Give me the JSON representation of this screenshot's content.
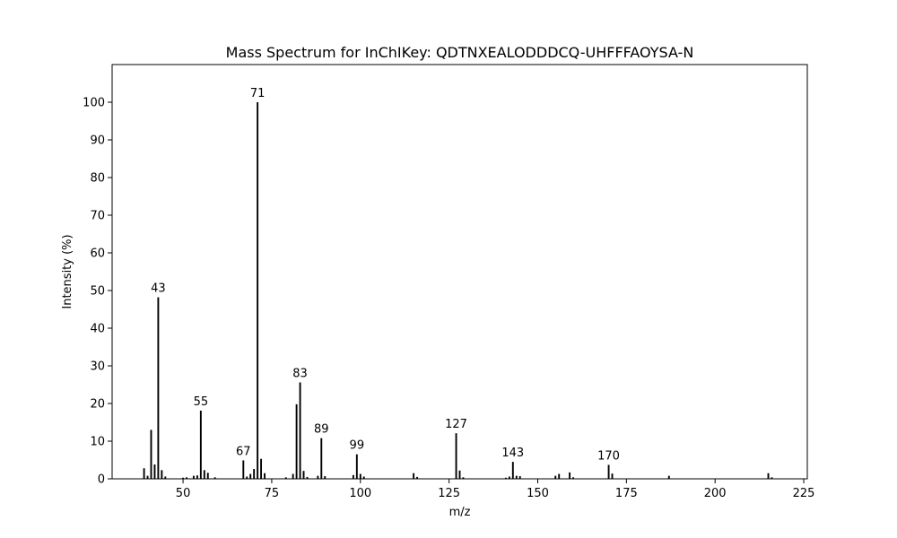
{
  "chart_data": {
    "type": "bar",
    "title": "Mass Spectrum for InChIKey: QDTNXEALODDDCQ-UHFFFAOYSA-N",
    "xlabel": "m/z",
    "ylabel": "Intensity (%)",
    "xlim": [
      30,
      226
    ],
    "ylim": [
      0,
      110
    ],
    "xticks": [
      50,
      75,
      100,
      125,
      150,
      175,
      200,
      225
    ],
    "yticks": [
      0,
      10,
      20,
      30,
      40,
      50,
      60,
      70,
      80,
      90,
      100
    ],
    "grid": false,
    "bar_color": "#000000",
    "peaks": [
      {
        "x": 39,
        "y": 2.8
      },
      {
        "x": 40,
        "y": 0.8
      },
      {
        "x": 41,
        "y": 13.0
      },
      {
        "x": 42,
        "y": 3.8
      },
      {
        "x": 43,
        "y": 48.2,
        "label": "43"
      },
      {
        "x": 44,
        "y": 2.3
      },
      {
        "x": 45,
        "y": 0.6
      },
      {
        "x": 50,
        "y": 0.3
      },
      {
        "x": 51,
        "y": 0.4
      },
      {
        "x": 53,
        "y": 0.8
      },
      {
        "x": 54,
        "y": 0.9
      },
      {
        "x": 55,
        "y": 18.1,
        "label": "55"
      },
      {
        "x": 56,
        "y": 2.3
      },
      {
        "x": 57,
        "y": 1.6
      },
      {
        "x": 59,
        "y": 0.4
      },
      {
        "x": 67,
        "y": 4.9,
        "label": "67"
      },
      {
        "x": 68,
        "y": 0.6
      },
      {
        "x": 69,
        "y": 1.3
      },
      {
        "x": 70,
        "y": 2.6
      },
      {
        "x": 71,
        "y": 100.0,
        "label": "71"
      },
      {
        "x": 72,
        "y": 5.3
      },
      {
        "x": 73,
        "y": 1.5
      },
      {
        "x": 79,
        "y": 0.4
      },
      {
        "x": 81,
        "y": 1.3
      },
      {
        "x": 82,
        "y": 19.8
      },
      {
        "x": 83,
        "y": 25.6,
        "label": "83"
      },
      {
        "x": 84,
        "y": 2.1
      },
      {
        "x": 85,
        "y": 0.5
      },
      {
        "x": 88,
        "y": 0.8
      },
      {
        "x": 89,
        "y": 10.8,
        "label": "89"
      },
      {
        "x": 90,
        "y": 0.7
      },
      {
        "x": 98,
        "y": 1.0
      },
      {
        "x": 99,
        "y": 6.5,
        "label": "99"
      },
      {
        "x": 100,
        "y": 1.3
      },
      {
        "x": 101,
        "y": 0.6
      },
      {
        "x": 115,
        "y": 1.5
      },
      {
        "x": 116,
        "y": 0.5
      },
      {
        "x": 127,
        "y": 12.1,
        "label": "127"
      },
      {
        "x": 128,
        "y": 2.2
      },
      {
        "x": 129,
        "y": 0.4
      },
      {
        "x": 141,
        "y": 0.3
      },
      {
        "x": 142,
        "y": 0.6
      },
      {
        "x": 143,
        "y": 4.5,
        "label": "143"
      },
      {
        "x": 144,
        "y": 0.8
      },
      {
        "x": 145,
        "y": 0.7
      },
      {
        "x": 155,
        "y": 0.8
      },
      {
        "x": 156,
        "y": 1.3
      },
      {
        "x": 159,
        "y": 1.7
      },
      {
        "x": 160,
        "y": 0.4
      },
      {
        "x": 170,
        "y": 3.7,
        "label": "170"
      },
      {
        "x": 171,
        "y": 1.4
      },
      {
        "x": 187,
        "y": 0.8
      },
      {
        "x": 215,
        "y": 1.5
      },
      {
        "x": 216,
        "y": 0.4
      }
    ]
  }
}
